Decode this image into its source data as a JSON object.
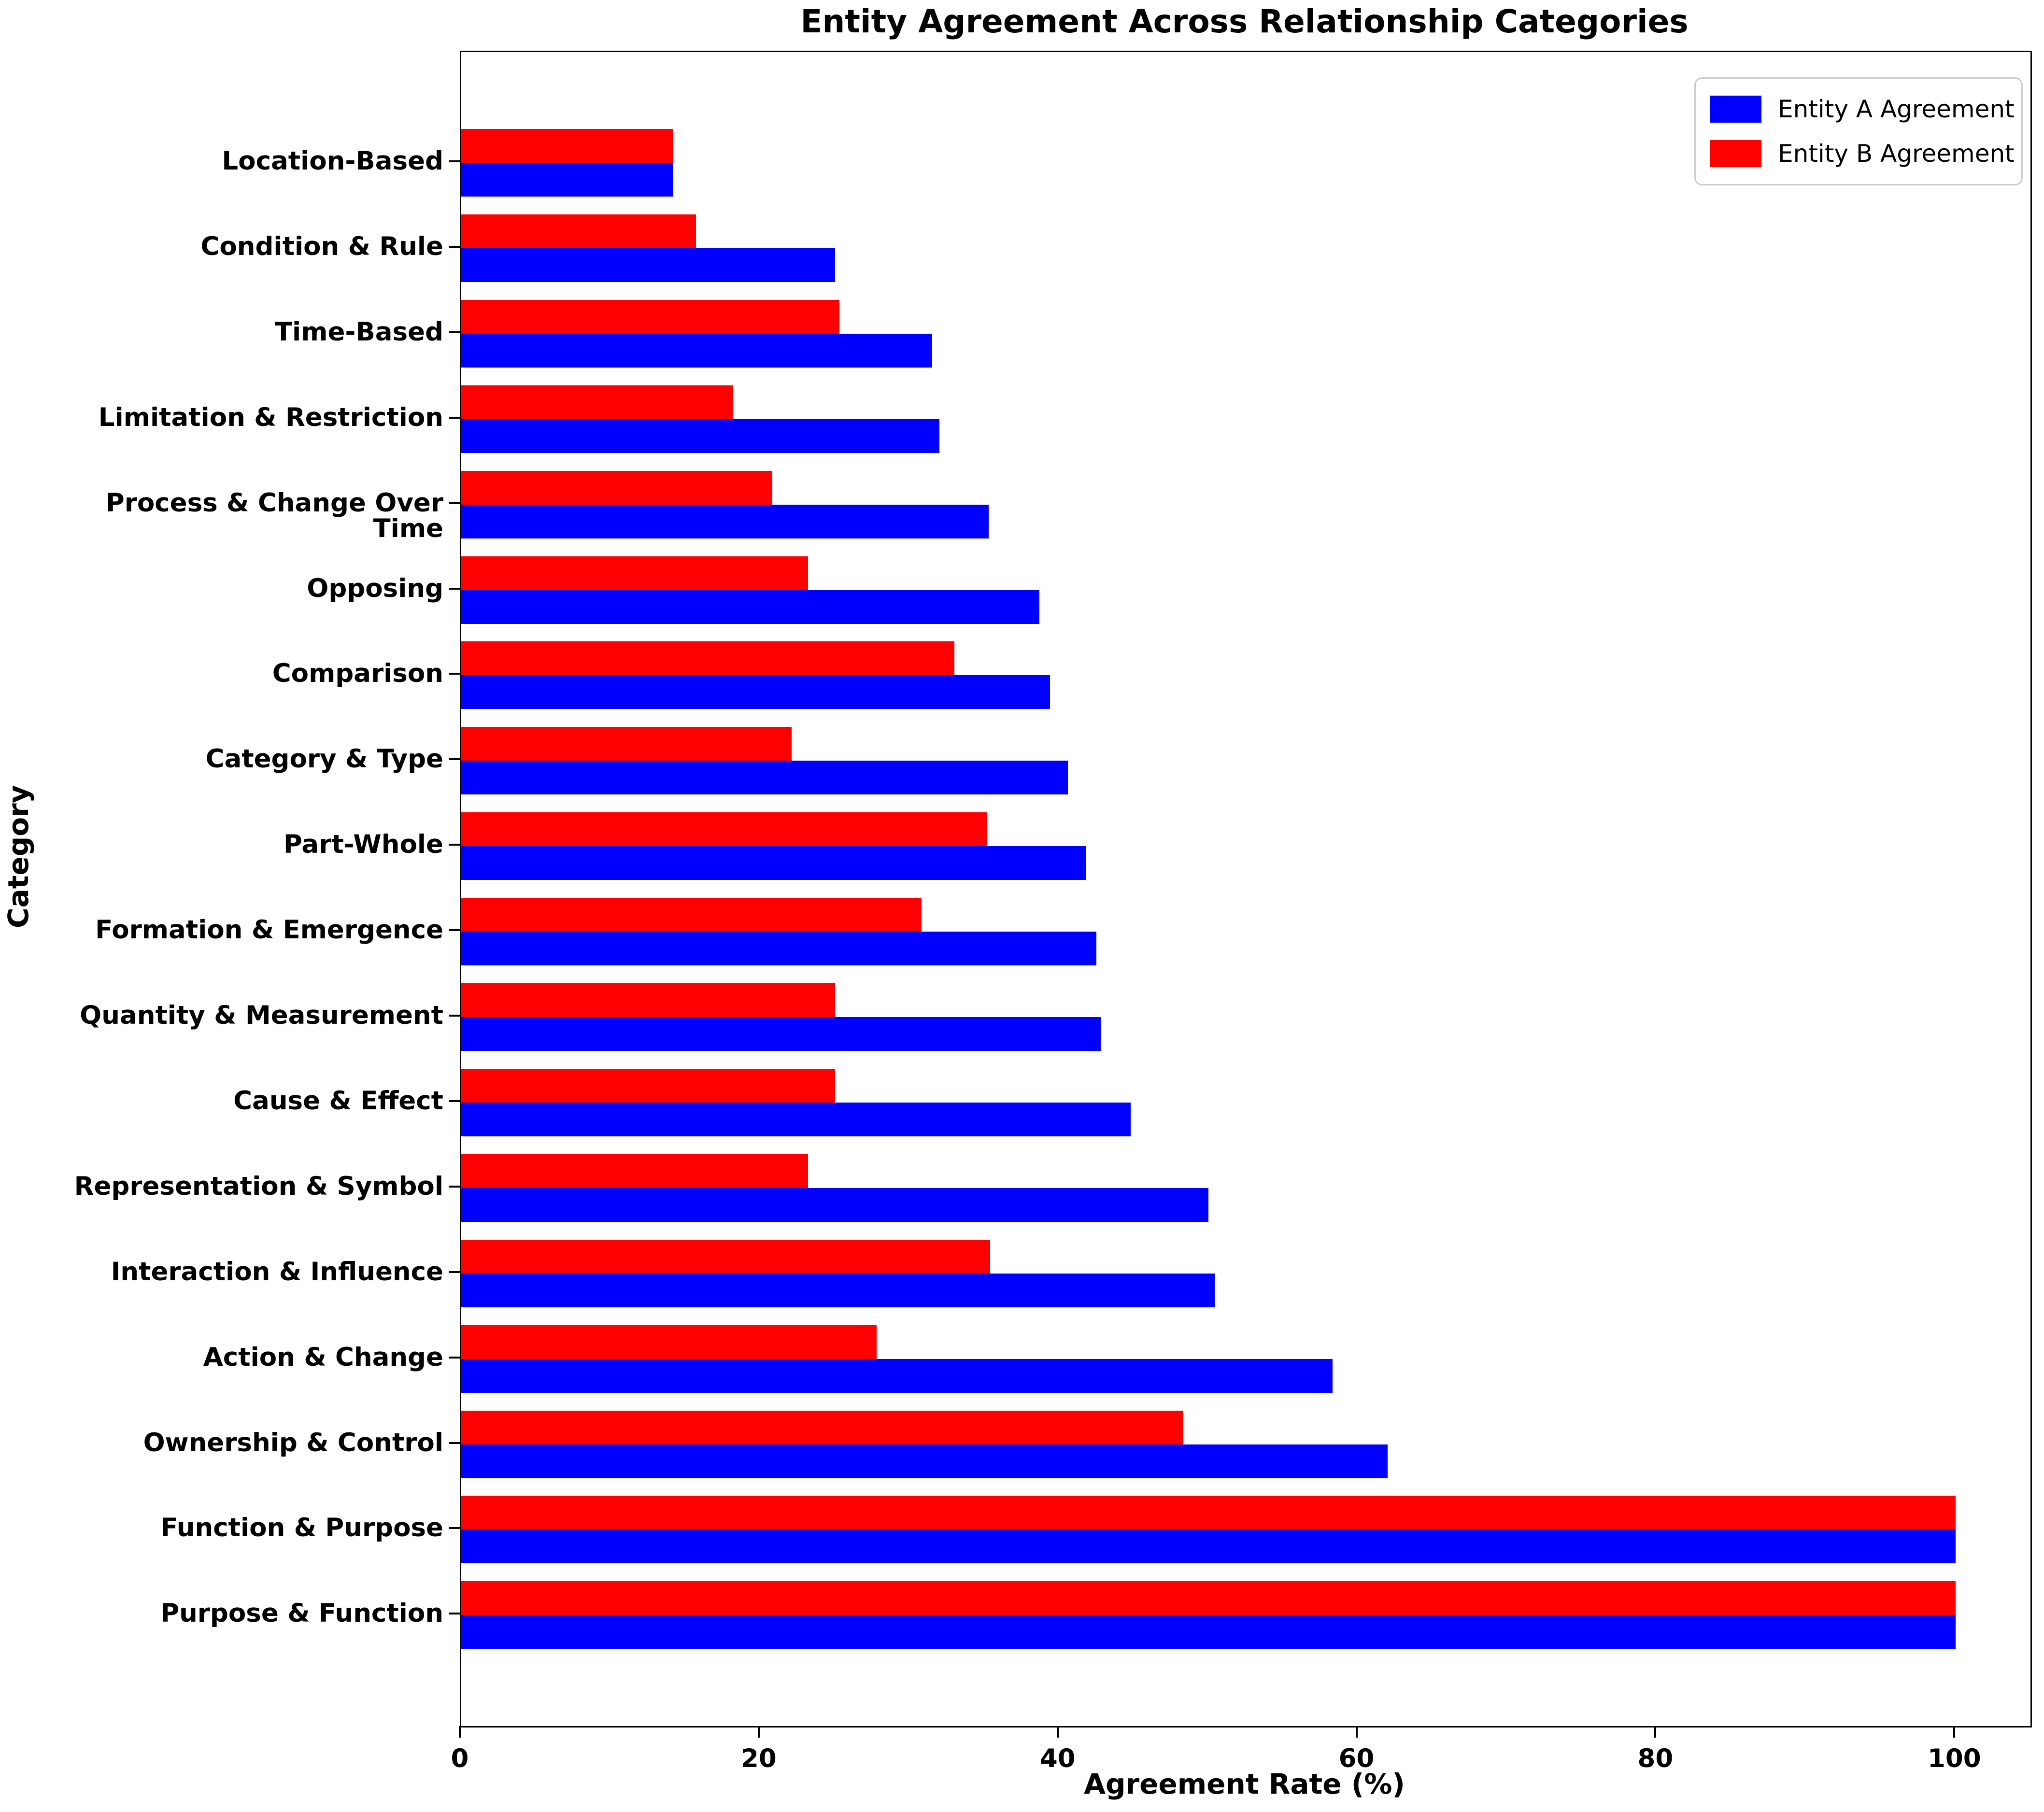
{
  "title": "Entity Agreement Across Relationship Categories",
  "chart_data": {
    "type": "bar",
    "orientation": "horizontal",
    "title": "Entity Agreement Across Relationship Categories",
    "xlabel": "Agreement Rate (%)",
    "ylabel": "Category",
    "xlim": [
      0,
      105
    ],
    "xticks": [
      0,
      20,
      40,
      60,
      80,
      100
    ],
    "grid": false,
    "legend_position": "upper right",
    "bar_colors": {
      "entity_a": "#0000ff",
      "entity_b": "#ff0000"
    },
    "categories_top_to_bottom": [
      "Location-Based",
      "Condition & Rule",
      "Time-Based",
      "Limitation & Restriction",
      "Process & Change Over Time",
      "Opposing",
      "Comparison",
      "Category & Type",
      "Part-Whole",
      "Formation & Emergence",
      "Quantity & Measurement",
      "Cause & Effect",
      "Representation & Symbol",
      "Interaction & Influence",
      "Action & Change",
      "Ownership & Control",
      "Function & Purpose",
      "Purpose & Function"
    ],
    "series": [
      {
        "name": "Entity A Agreement",
        "color": "#0000ff",
        "values": [
          14.2,
          25.0,
          31.5,
          32.0,
          35.3,
          38.7,
          39.4,
          40.6,
          41.8,
          42.5,
          42.8,
          44.8,
          50.0,
          50.4,
          58.3,
          62.0,
          100.0,
          100.0
        ]
      },
      {
        "name": "Entity B Agreement",
        "color": "#ff0000",
        "values": [
          14.2,
          15.7,
          25.3,
          18.2,
          20.8,
          23.2,
          33.0,
          22.1,
          35.2,
          30.8,
          25.0,
          25.0,
          23.2,
          35.4,
          27.8,
          48.3,
          100.0,
          100.0
        ]
      }
    ]
  }
}
